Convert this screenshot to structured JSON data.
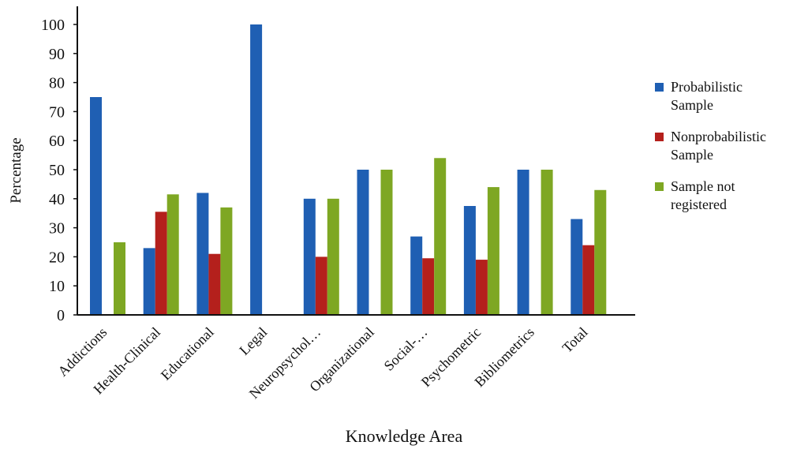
{
  "chart_data": {
    "type": "bar",
    "xlabel": "Knowledge Area",
    "ylabel": "Percentage",
    "ylim": [
      0,
      100
    ],
    "yticks": [
      0,
      10,
      20,
      30,
      40,
      50,
      60,
      70,
      80,
      90,
      100
    ],
    "grid": false,
    "legend_position": "right",
    "categories": [
      "Addictions",
      "Health-Clinical",
      "Educational",
      "Legal",
      "Neuropsychol…",
      "Organizational",
      "Social-…",
      "Psychometric",
      "Bibliometrics",
      "Total"
    ],
    "series": [
      {
        "name": "Probabilistic Sample",
        "color": "#1f5fb3",
        "values": [
          75,
          23,
          42,
          100,
          40,
          50,
          27,
          37.5,
          50,
          33
        ]
      },
      {
        "name": "Nonprobabilistic Sample",
        "color": "#b4201c",
        "values": [
          0,
          35.5,
          21,
          0,
          20,
          0,
          19.5,
          19,
          0,
          24
        ]
      },
      {
        "name": "Sample not registered",
        "color": "#7ea723",
        "values": [
          25,
          41.5,
          37,
          0,
          40,
          50,
          54,
          44,
          50,
          43
        ]
      }
    ]
  },
  "legend": {
    "entries": [
      {
        "line1": "Probabilistic",
        "line2": "Sample"
      },
      {
        "line1": "Nonprobabilistic",
        "line2": "Sample"
      },
      {
        "line1": "Sample not",
        "line2": "registered"
      }
    ]
  }
}
